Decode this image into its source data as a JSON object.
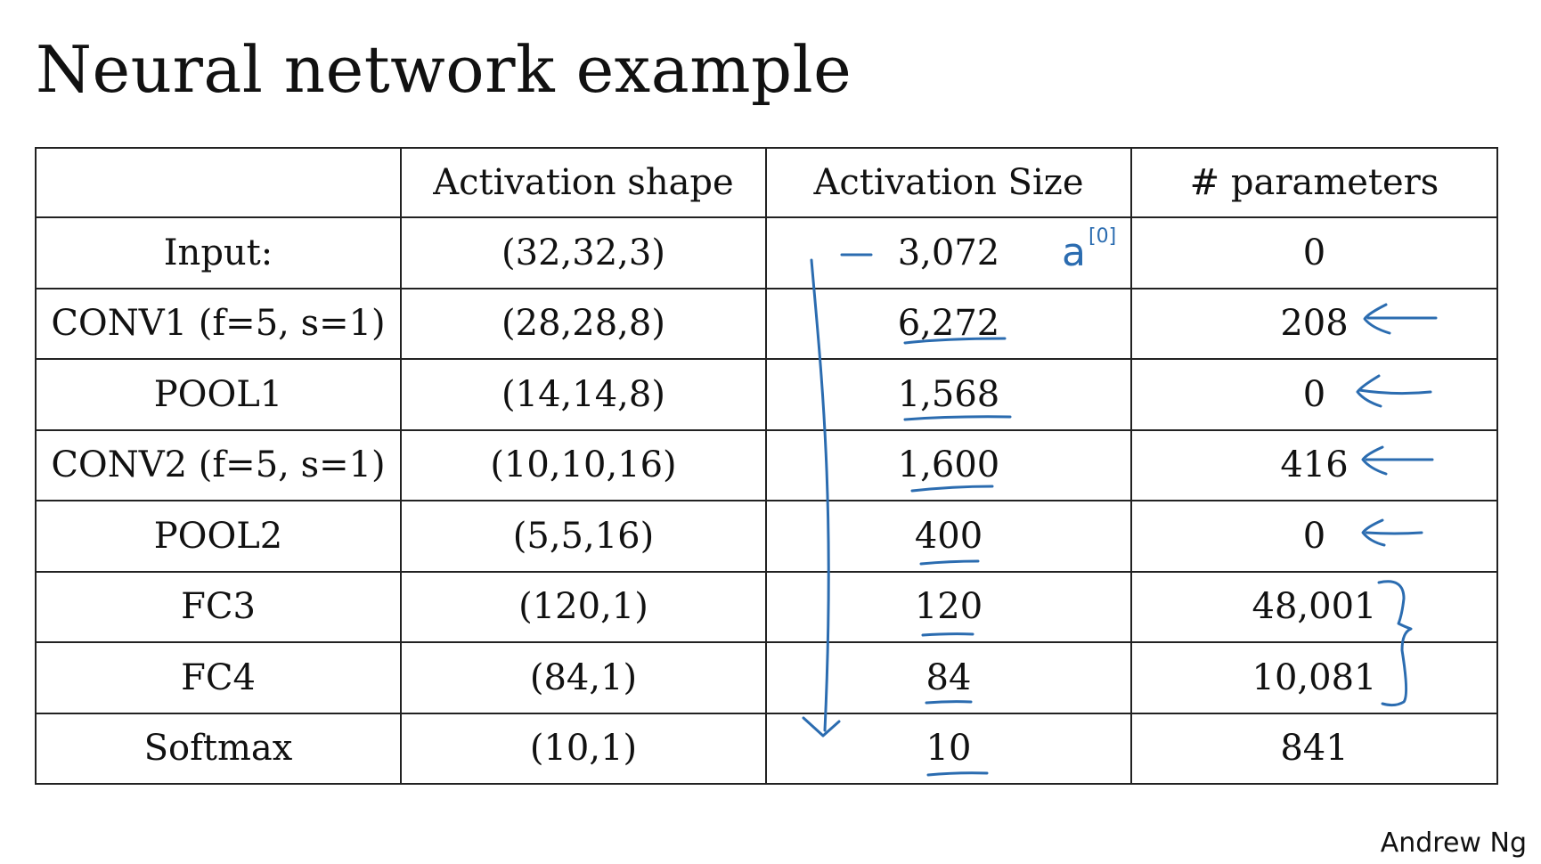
{
  "slide": {
    "title": "Neural network example",
    "author": "Andrew Ng"
  },
  "table": {
    "headers": [
      "",
      "Activation shape",
      "Activation Size",
      "# parameters"
    ],
    "rows": [
      {
        "layer": "Input:",
        "shape": "(32,32,3)",
        "size": "3,072",
        "params": "0"
      },
      {
        "layer": "CONV1 (f=5, s=1)",
        "shape": "(28,28,8)",
        "size": "6,272",
        "params": "208"
      },
      {
        "layer": "POOL1",
        "shape": "(14,14,8)",
        "size": "1,568",
        "params": "0"
      },
      {
        "layer": "CONV2  (f=5, s=1)",
        "shape": "(10,10,16)",
        "size": "1,600",
        "params": "416"
      },
      {
        "layer": "POOL2",
        "shape": "(5,5,16)",
        "size": "400",
        "params": "0"
      },
      {
        "layer": "FC3",
        "shape": "(120,1)",
        "size": "120",
        "params": "48,001"
      },
      {
        "layer": "FC4",
        "shape": "(84,1)",
        "size": "84",
        "params": "10,081"
      },
      {
        "layer": "Softmax",
        "shape": "(10,1)",
        "size": "10",
        "params": "841"
      }
    ]
  },
  "annotations": {
    "handwritten_note": "a",
    "handwritten_superscript": "[0]",
    "ink_color": "#2b6cb0"
  }
}
